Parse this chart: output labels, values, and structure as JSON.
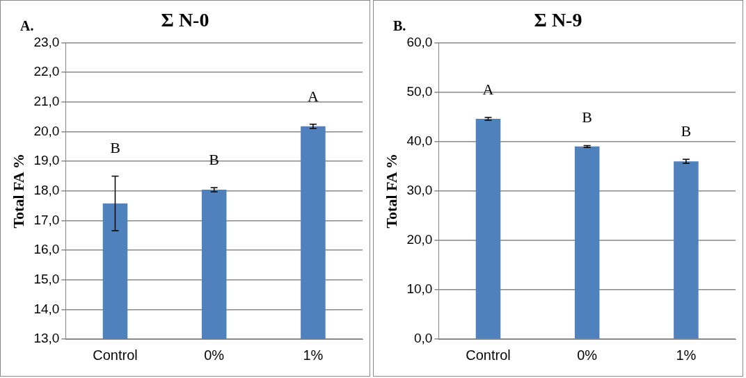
{
  "chart_data": [
    {
      "type": "bar",
      "title": "Σ N-0",
      "ylabel": "Total FA %",
      "categories": [
        "Control",
        "0%",
        "1%"
      ],
      "color": "#4f81bd",
      "values": [
        17.58,
        18.04,
        20.18
      ],
      "errors": [
        0.92,
        0.07,
        0.07
      ],
      "ylim": [
        13,
        23
      ],
      "yticks": [
        {
          "value": 13,
          "label": "13,0"
        },
        {
          "value": 14,
          "label": "14,0"
        },
        {
          "value": 15,
          "label": "15,0"
        },
        {
          "value": 16,
          "label": "16,0"
        },
        {
          "value": 17,
          "label": "17,0"
        },
        {
          "value": 18,
          "label": "18,0"
        },
        {
          "value": 19,
          "label": "19,0"
        },
        {
          "value": 20,
          "label": "20,0"
        },
        {
          "value": 21,
          "label": "21,0"
        },
        {
          "value": 22,
          "label": "22,0"
        },
        {
          "value": 23,
          "label": "23,0"
        }
      ],
      "grid": "y",
      "legend": false,
      "annotations": [
        "A.",
        "B",
        "B",
        "A"
      ]
    },
    {
      "type": "bar",
      "title": "Σ N-9",
      "ylabel": "Total FA %",
      "categories": [
        "Control",
        "0%",
        "1%"
      ],
      "color": "#4f81bd",
      "values": [
        44.6,
        39.0,
        36.0
      ],
      "errors": [
        0.3,
        0.2,
        0.4
      ],
      "ylim": [
        0,
        60
      ],
      "yticks": [
        {
          "value": 0,
          "label": "0,0"
        },
        {
          "value": 10,
          "label": "10,0"
        },
        {
          "value": 20,
          "label": "20,0"
        },
        {
          "value": 30,
          "label": "30,0"
        },
        {
          "value": 40,
          "label": "40,0"
        },
        {
          "value": 50,
          "label": "50,0"
        },
        {
          "value": 60,
          "label": "60,0"
        }
      ],
      "grid": "y",
      "legend": false,
      "annotations": [
        "B.",
        "A",
        "B",
        "B"
      ]
    }
  ]
}
